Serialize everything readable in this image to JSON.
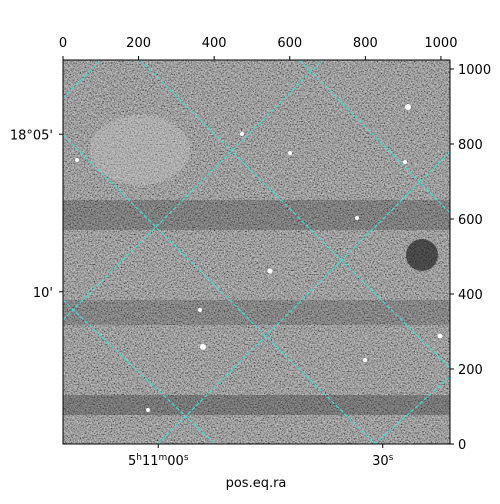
{
  "chart_data": {
    "type": "image",
    "xlabel": "pos.eq.ra",
    "xlim": [
      0,
      1024
    ],
    "xticks": [
      0,
      200,
      400,
      600,
      800,
      1000
    ],
    "ylim": [
      0,
      1024
    ],
    "yticks": [
      0,
      200,
      400,
      600,
      800,
      1000
    ],
    "raticks": [
      {
        "value": 252,
        "label": "5h11m00s"
      },
      {
        "value": 846,
        "label": "30s"
      }
    ],
    "decticks": [
      {
        "value": 826,
        "label": "18°05'"
      },
      {
        "value": 406,
        "label": "10'"
      }
    ],
    "grid_color": "#40e0d0"
  }
}
